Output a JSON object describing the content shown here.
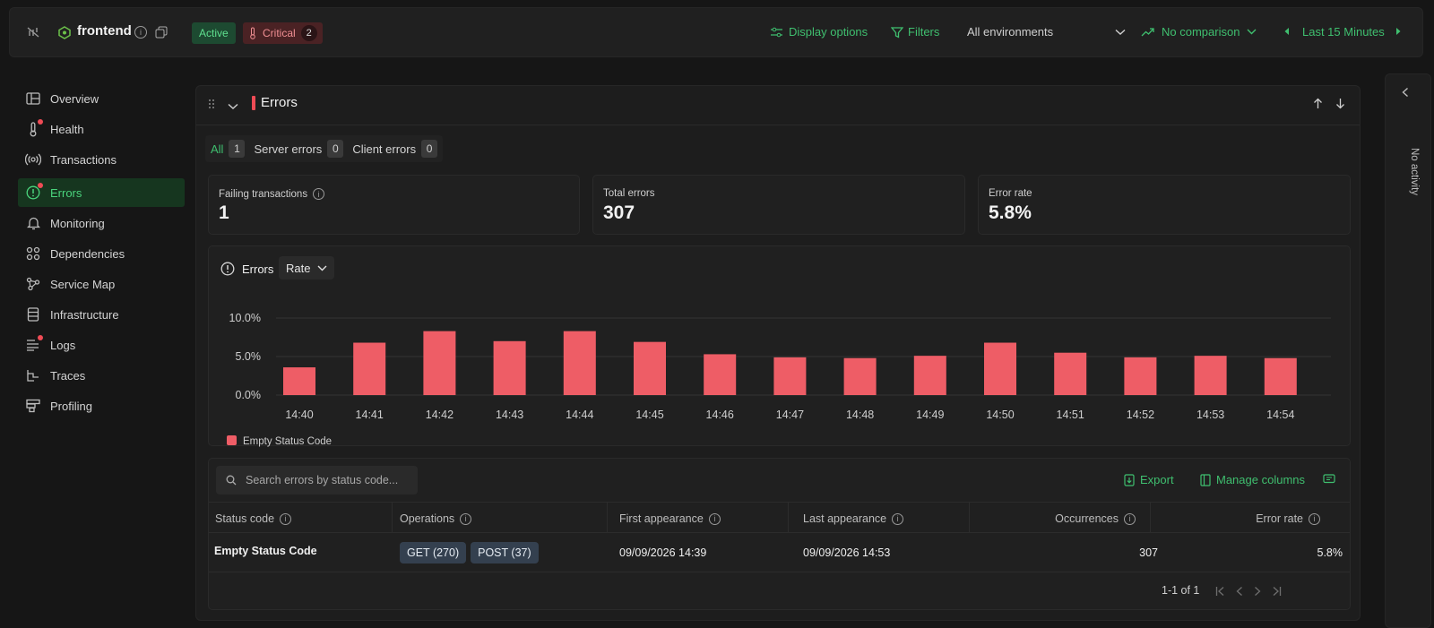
{
  "header": {
    "service_name": "frontend",
    "status_active": "Active",
    "status_critical": "Critical",
    "critical_count": "2",
    "display_options": "Display options",
    "filters": "Filters",
    "environment": "All environments",
    "comparison": "No comparison",
    "time_range": "Last 15 Minutes"
  },
  "sidebar": {
    "items": [
      {
        "label": "Overview",
        "icon": "grid-icon"
      },
      {
        "label": "Health",
        "icon": "thermometer-icon"
      },
      {
        "label": "Transactions",
        "icon": "broadcast-icon"
      },
      {
        "label": "Errors",
        "icon": "alert-circle-icon"
      },
      {
        "label": "Monitoring",
        "icon": "bell-icon"
      },
      {
        "label": "Dependencies",
        "icon": "dependencies-icon"
      },
      {
        "label": "Service Map",
        "icon": "network-icon"
      },
      {
        "label": "Infrastructure",
        "icon": "server-icon"
      },
      {
        "label": "Logs",
        "icon": "list-icon"
      },
      {
        "label": "Traces",
        "icon": "traces-icon"
      },
      {
        "label": "Profiling",
        "icon": "profiling-icon"
      }
    ]
  },
  "panel": {
    "title": "Errors",
    "tabs": [
      {
        "label": "All",
        "count": "1"
      },
      {
        "label": "Server errors",
        "count": "0"
      },
      {
        "label": "Client errors",
        "count": "0"
      }
    ],
    "stats": [
      {
        "label": "Failing transactions",
        "value": "1"
      },
      {
        "label": "Total errors",
        "value": "307"
      },
      {
        "label": "Error rate",
        "value": "5.8%"
      }
    ],
    "chart_title": "Errors",
    "chart_mode": "Rate",
    "search_placeholder": "Search errors by status code...",
    "export": "Export",
    "manage_columns": "Manage columns",
    "columns": [
      "Status code",
      "Operations",
      "First appearance",
      "Last appearance",
      "Occurrences",
      "Error rate"
    ],
    "row": {
      "status_code": "Empty Status Code",
      "operations": [
        "GET (270)",
        "POST (37)"
      ],
      "first": "09/09/2026 14:39",
      "last": "09/09/2026 14:53",
      "occurrences": "307",
      "error_rate": "5.8%"
    },
    "pagination": "1-1 of 1"
  },
  "right_rail": {
    "label": "No activity"
  },
  "colors": {
    "accent": "#3fbf6f",
    "bar": "#ee5d66",
    "critical": "#ef4b55"
  },
  "chart_data": {
    "type": "bar",
    "categories": [
      "14:40",
      "14:41",
      "14:42",
      "14:43",
      "14:44",
      "14:45",
      "14:46",
      "14:47",
      "14:48",
      "14:49",
      "14:50",
      "14:51",
      "14:52",
      "14:53",
      "14:54"
    ],
    "series": [
      {
        "name": "Empty Status Code",
        "values": [
          3.6,
          6.8,
          8.3,
          7.0,
          8.3,
          6.9,
          5.3,
          4.9,
          4.8,
          5.1,
          6.8,
          5.5,
          4.9,
          5.1,
          4.8
        ]
      }
    ],
    "yticks": [
      "10.0%",
      "5.0%",
      "0.0%"
    ],
    "ylim": [
      0,
      10
    ],
    "legend": "bottom-left",
    "grid": true
  }
}
